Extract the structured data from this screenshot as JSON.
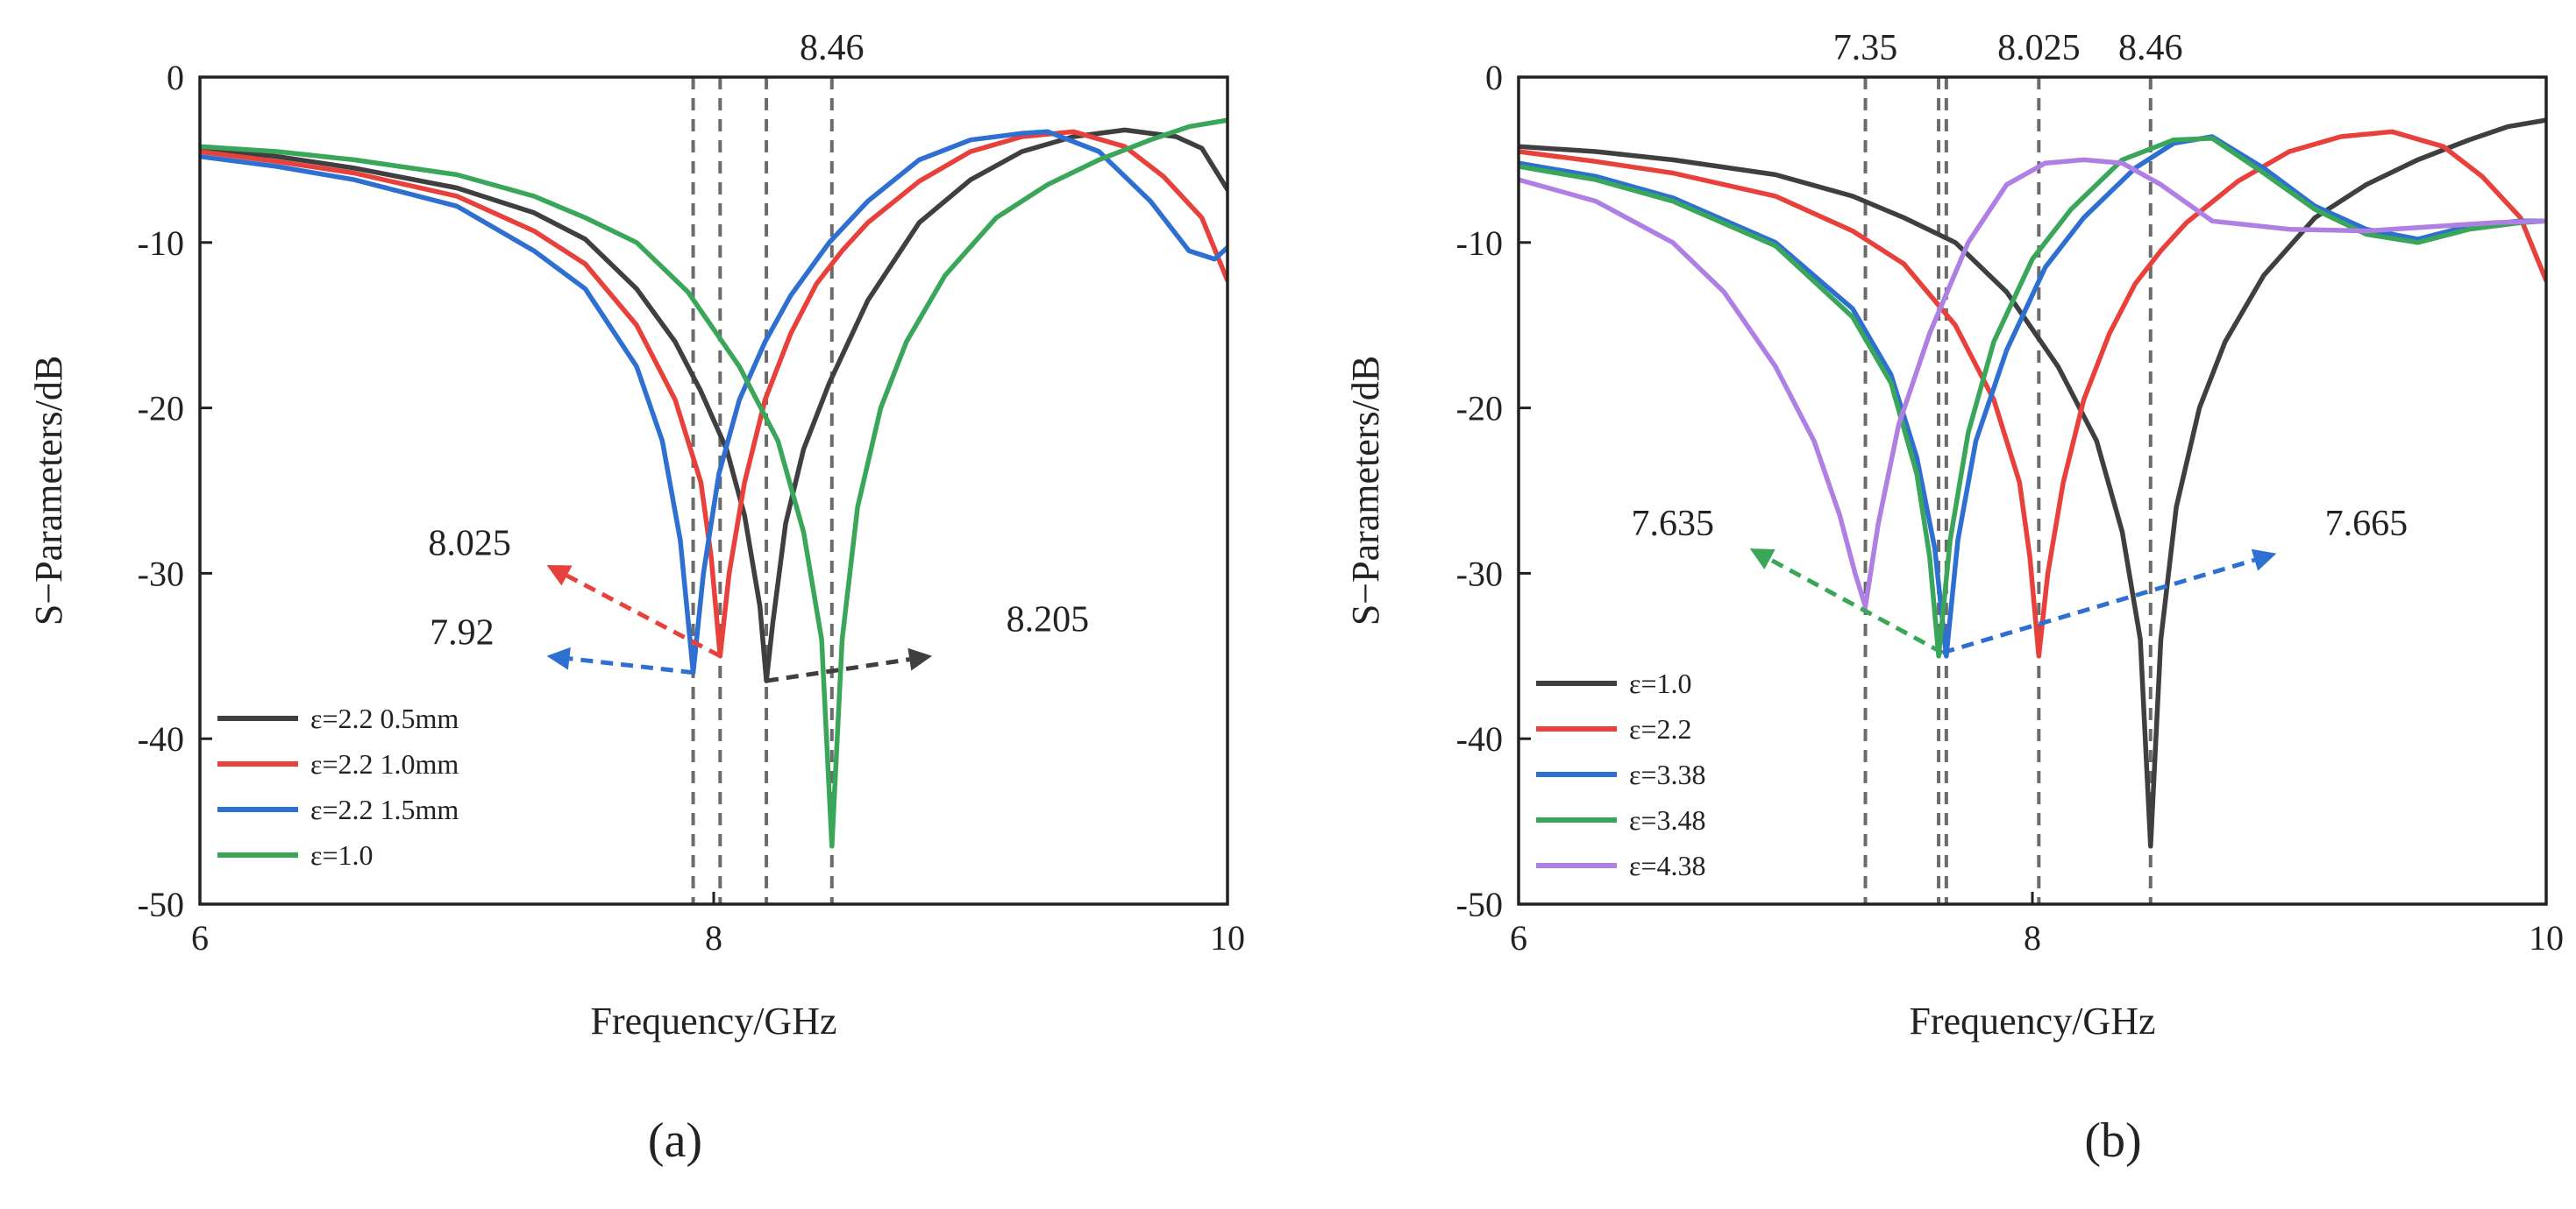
{
  "chart_data": [
    {
      "type": "line",
      "panel": "(a)",
      "xlabel": "Frequency/GHz",
      "ylabel": "S−Parameters/dB",
      "xlim": [
        6,
        10
      ],
      "ylim": [
        -50,
        0
      ],
      "xticks": [
        6,
        8,
        10
      ],
      "yticks": [
        0,
        -10,
        -20,
        -30,
        -40,
        -50
      ],
      "legend_position": "bottom-left",
      "vlines": [
        7.92,
        8.025,
        8.205,
        8.46
      ],
      "top_label": {
        "text": "8.46",
        "x": 8.46
      },
      "series": [
        {
          "name": "ε=2.2 0.5mm",
          "color": "#3f3f3f",
          "x": [
            6,
            6.3,
            6.6,
            7.0,
            7.3,
            7.5,
            7.7,
            7.85,
            7.95,
            8.05,
            8.12,
            8.18,
            8.205,
            8.23,
            8.28,
            8.35,
            8.45,
            8.6,
            8.8,
            9.0,
            9.2,
            9.4,
            9.6,
            9.8,
            9.9,
            10.0
          ],
          "y": [
            -4.3,
            -4.8,
            -5.5,
            -6.7,
            -8.2,
            -9.8,
            -12.8,
            -16.0,
            -19.0,
            -22.5,
            -26.5,
            -32.0,
            -36.5,
            -33.0,
            -27.0,
            -22.5,
            -18.5,
            -13.5,
            -8.8,
            -6.2,
            -4.5,
            -3.6,
            -3.2,
            -3.6,
            -4.3,
            -6.8
          ]
        },
        {
          "name": "ε=2.2 1.0mm",
          "color": "#e8403a",
          "x": [
            6,
            6.3,
            6.6,
            7.0,
            7.3,
            7.5,
            7.7,
            7.85,
            7.95,
            7.99,
            8.025,
            8.06,
            8.12,
            8.2,
            8.3,
            8.4,
            8.5,
            8.6,
            8.8,
            9.0,
            9.2,
            9.4,
            9.6,
            9.75,
            9.9,
            10.0
          ],
          "y": [
            -4.5,
            -5.1,
            -5.8,
            -7.2,
            -9.3,
            -11.3,
            -15.0,
            -19.5,
            -24.5,
            -29.0,
            -35.0,
            -30.0,
            -24.5,
            -19.5,
            -15.5,
            -12.5,
            -10.5,
            -8.8,
            -6.3,
            -4.5,
            -3.6,
            -3.3,
            -4.2,
            -6.0,
            -8.5,
            -12.3
          ]
        },
        {
          "name": "ε=2.2 1.5mm",
          "color": "#2e6fd2",
          "x": [
            6,
            6.3,
            6.6,
            7.0,
            7.3,
            7.5,
            7.7,
            7.8,
            7.87,
            7.92,
            7.96,
            8.02,
            8.1,
            8.2,
            8.3,
            8.45,
            8.6,
            8.8,
            9.0,
            9.2,
            9.3,
            9.5,
            9.7,
            9.85,
            9.95,
            10.0
          ],
          "y": [
            -4.8,
            -5.4,
            -6.2,
            -7.8,
            -10.5,
            -12.8,
            -17.5,
            -22.0,
            -28.0,
            -36.0,
            -30.0,
            -24.0,
            -19.5,
            -16.0,
            -13.2,
            -10.0,
            -7.5,
            -5.0,
            -3.8,
            -3.4,
            -3.3,
            -4.5,
            -7.5,
            -10.5,
            -11.0,
            -10.3
          ]
        },
        {
          "name": "ε=1.0",
          "color": "#3aa65a",
          "x": [
            6,
            6.3,
            6.6,
            7.0,
            7.3,
            7.5,
            7.7,
            7.9,
            8.1,
            8.25,
            8.35,
            8.42,
            8.46,
            8.5,
            8.56,
            8.65,
            8.75,
            8.9,
            9.1,
            9.3,
            9.5,
            9.7,
            9.85,
            10.0
          ],
          "y": [
            -4.2,
            -4.5,
            -5.0,
            -5.9,
            -7.2,
            -8.5,
            -10.0,
            -13.0,
            -17.5,
            -22.0,
            -27.5,
            -34.0,
            -46.5,
            -34.0,
            -26.0,
            -20.0,
            -16.0,
            -12.0,
            -8.5,
            -6.5,
            -5.0,
            -3.8,
            -3.0,
            -2.6
          ]
        }
      ],
      "annotations": [
        {
          "text": "8.025",
          "color": "#e8403a",
          "from": [
            8.025,
            -35.0
          ],
          "to": [
            7.35,
            -29.5
          ],
          "label_at": [
            7.05,
            -28.9
          ]
        },
        {
          "text": "7.92",
          "color": "#2e6fd2",
          "from": [
            7.92,
            -36.0
          ],
          "to": [
            7.35,
            -35.0
          ],
          "label_at": [
            7.02,
            -34.3
          ]
        },
        {
          "text": "8.205",
          "color": "#3f3f3f",
          "from": [
            8.205,
            -36.5
          ],
          "to": [
            8.85,
            -35.0
          ],
          "label_at": [
            9.3,
            -33.5
          ]
        }
      ]
    },
    {
      "type": "line",
      "panel": "(b)",
      "xlabel": "Frequency/GHz",
      "ylabel": "S−Parameters/dB",
      "xlim": [
        6,
        10
      ],
      "ylim": [
        -50,
        0
      ],
      "xticks": [
        6,
        8,
        10
      ],
      "yticks": [
        0,
        -10,
        -20,
        -30,
        -40,
        -50
      ],
      "legend_position": "bottom-left",
      "vlines": [
        7.35,
        7.635,
        7.665,
        8.025,
        8.46
      ],
      "top_labels": [
        {
          "text": "7.35",
          "x": 7.35
        },
        {
          "text": "8.025",
          "x": 8.025
        },
        {
          "text": "8.46",
          "x": 8.46
        }
      ],
      "series": [
        {
          "name": "ε=1.0",
          "color": "#3f3f3f",
          "x": [
            6,
            6.3,
            6.6,
            7.0,
            7.3,
            7.5,
            7.7,
            7.9,
            8.1,
            8.25,
            8.35,
            8.42,
            8.46,
            8.5,
            8.56,
            8.65,
            8.75,
            8.9,
            9.1,
            9.3,
            9.5,
            9.7,
            9.85,
            10.0
          ],
          "y": [
            -4.2,
            -4.5,
            -5.0,
            -5.9,
            -7.2,
            -8.5,
            -10.0,
            -13.0,
            -17.5,
            -22.0,
            -27.5,
            -34.0,
            -46.5,
            -34.0,
            -26.0,
            -20.0,
            -16.0,
            -12.0,
            -8.5,
            -6.5,
            -5.0,
            -3.8,
            -3.0,
            -2.6
          ]
        },
        {
          "name": "ε=2.2",
          "color": "#e8403a",
          "x": [
            6,
            6.3,
            6.6,
            7.0,
            7.3,
            7.5,
            7.7,
            7.85,
            7.95,
            7.99,
            8.025,
            8.06,
            8.12,
            8.2,
            8.3,
            8.4,
            8.5,
            8.6,
            8.8,
            9.0,
            9.2,
            9.4,
            9.6,
            9.75,
            9.9,
            10.0
          ],
          "y": [
            -4.5,
            -5.1,
            -5.8,
            -7.2,
            -9.3,
            -11.3,
            -15.0,
            -19.5,
            -24.5,
            -29.0,
            -35.0,
            -30.0,
            -24.5,
            -19.5,
            -15.5,
            -12.5,
            -10.5,
            -8.8,
            -6.3,
            -4.5,
            -3.6,
            -3.3,
            -4.2,
            -6.0,
            -8.5,
            -12.3
          ]
        },
        {
          "name": "ε=3.38",
          "color": "#2e6fd2",
          "x": [
            6,
            6.3,
            6.6,
            7.0,
            7.3,
            7.45,
            7.55,
            7.62,
            7.665,
            7.71,
            7.78,
            7.9,
            8.05,
            8.2,
            8.4,
            8.55,
            8.7,
            8.9,
            9.1,
            9.3,
            9.5,
            9.7,
            9.9,
            10.0
          ],
          "y": [
            -5.2,
            -6.0,
            -7.3,
            -10.0,
            -14.0,
            -18.0,
            -23.0,
            -28.5,
            -35.0,
            -28.0,
            -22.0,
            -16.5,
            -11.5,
            -8.5,
            -5.5,
            -4.0,
            -3.6,
            -5.5,
            -7.8,
            -9.2,
            -9.8,
            -9.0,
            -8.7,
            -8.7
          ]
        },
        {
          "name": "ε=3.48",
          "color": "#3aa65a",
          "x": [
            6,
            6.3,
            6.6,
            7.0,
            7.3,
            7.45,
            7.55,
            7.6,
            7.635,
            7.68,
            7.75,
            7.85,
            8.0,
            8.15,
            8.35,
            8.55,
            8.7,
            8.9,
            9.1,
            9.3,
            9.5,
            9.7,
            9.9,
            10.0
          ],
          "y": [
            -5.4,
            -6.2,
            -7.5,
            -10.2,
            -14.5,
            -18.5,
            -24.0,
            -29.0,
            -35.0,
            -28.0,
            -21.5,
            -16.0,
            -11.0,
            -8.0,
            -5.0,
            -3.8,
            -3.7,
            -5.8,
            -8.0,
            -9.5,
            -10.0,
            -9.2,
            -8.8,
            -8.7
          ]
        },
        {
          "name": "ε=4.38",
          "color": "#b07fe3",
          "x": [
            6,
            6.3,
            6.6,
            6.8,
            7.0,
            7.15,
            7.25,
            7.31,
            7.35,
            7.4,
            7.48,
            7.6,
            7.75,
            7.9,
            8.05,
            8.2,
            8.35,
            8.5,
            8.7,
            9.0,
            9.3,
            9.6,
            9.8,
            10.0
          ],
          "y": [
            -6.2,
            -7.5,
            -10.0,
            -13.0,
            -17.5,
            -22.0,
            -26.5,
            -30.0,
            -32.0,
            -27.0,
            -21.0,
            -15.5,
            -10.0,
            -6.5,
            -5.2,
            -5.0,
            -5.2,
            -6.5,
            -8.7,
            -9.2,
            -9.3,
            -9.0,
            -8.8,
            -8.7
          ]
        }
      ],
      "annotations": [
        {
          "text": "7.635",
          "color": "#3aa65a",
          "from": [
            7.65,
            -34.8
          ],
          "to": [
            6.9,
            -28.5
          ],
          "label_at": [
            6.6,
            -27.7
          ]
        },
        {
          "text": "7.665",
          "color": "#2e6fd2",
          "from": [
            7.65,
            -34.8
          ],
          "to": [
            8.95,
            -28.8
          ],
          "label_at": [
            9.3,
            -27.7
          ]
        }
      ]
    }
  ],
  "captions": {
    "a": "(a)",
    "b": "(b)"
  }
}
